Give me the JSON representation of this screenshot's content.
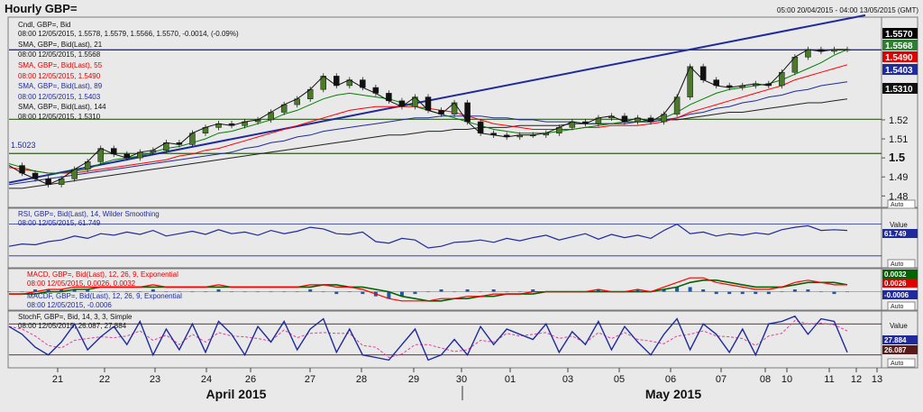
{
  "header": {
    "title": "Hourly GBP=",
    "date_range": "05:00 20/04/2015 - 04:00 13/05/2015 (GMT)"
  },
  "chart_data": {
    "type": "line",
    "x_ticks": [
      "21",
      "22",
      "23",
      "24",
      "26",
      "27",
      "28",
      "29",
      "30",
      "01",
      "03",
      "05",
      "06",
      "07",
      "08",
      "10",
      "11",
      "12",
      "13"
    ],
    "month_labels": [
      "April 2015",
      "May 2015"
    ],
    "colors": {
      "price": "#111111",
      "sma21": "#008000",
      "sma55": "#ff0000",
      "sma89": "#1f2a9c",
      "sma144": "#222222",
      "trendline": "#1f2a9c",
      "rsi": "#1f2a9c",
      "macd": "#ff0000",
      "macd_signal": "#006400",
      "hist": "#1f5aa8",
      "stoch_k": "#1f2a9c",
      "stoch_d": "#e0409a"
    },
    "price_panel": {
      "legend": [
        {
          "name": "Cndl, GBP=, Bid",
          "detail": "08:00 12/05/2015, 1.5578, 1.5579, 1.5566, 1.5570, -0.0014, (-0.09%)"
        },
        {
          "name": "SMA, GBP=, Bid(Last), 21",
          "detail": "08:00 12/05/2015, 1.5568"
        },
        {
          "name": "SMA, GBP=, Bid(Last), 55",
          "detail": "08:00 12/05/2015, 1.5490"
        },
        {
          "name": "SMA, GBP=, Bid(Last), 89",
          "detail": "08:00 12/05/2015, 1.5403"
        },
        {
          "name": "SMA, GBP=, Bid(Last), 144",
          "detail": "08:00 12/05/2015, 1.5310"
        }
      ],
      "y_ticks": [
        "1.52",
        "1.51",
        "1.5",
        "1.49",
        "1.48"
      ],
      "ylim": [
        1.474,
        1.574
      ],
      "value_tags": [
        "1.5570",
        "1.5568",
        "1.5490",
        "1.5403",
        "1.5310"
      ],
      "level_label": "1.5023",
      "horizontal_levels": [
        1.5568,
        1.5203,
        1.5023
      ],
      "auto": "Auto",
      "close_series": [
        1.496,
        1.492,
        1.489,
        1.486,
        1.489,
        1.494,
        1.498,
        1.505,
        1.502,
        1.5,
        1.503,
        1.504,
        1.508,
        1.507,
        1.513,
        1.516,
        1.518,
        1.517,
        1.519,
        1.52,
        1.524,
        1.528,
        1.531,
        1.536,
        1.543,
        1.538,
        1.541,
        1.537,
        1.534,
        1.53,
        1.527,
        1.532,
        1.525,
        1.523,
        1.529,
        1.519,
        1.513,
        1.512,
        1.511,
        1.512,
        1.512,
        1.513,
        1.516,
        1.519,
        1.518,
        1.521,
        1.522,
        1.519,
        1.521,
        1.519,
        1.523,
        1.532,
        1.548,
        1.541,
        1.538,
        1.537,
        1.538,
        1.539,
        1.538,
        1.545,
        1.553,
        1.557,
        1.556,
        1.557,
        1.557
      ],
      "sma21": [
        1.497,
        1.495,
        1.493,
        1.492,
        1.492,
        1.493,
        1.494,
        1.497,
        1.499,
        1.5,
        1.501,
        1.503,
        1.505,
        1.506,
        1.508,
        1.51,
        1.513,
        1.514,
        1.516,
        1.518,
        1.52,
        1.523,
        1.525,
        1.528,
        1.531,
        1.533,
        1.534,
        1.533,
        1.532,
        1.531,
        1.529,
        1.527,
        1.525,
        1.523,
        1.521,
        1.519,
        1.517,
        1.515,
        1.514,
        1.513,
        1.513,
        1.513,
        1.514,
        1.515,
        1.516,
        1.517,
        1.518,
        1.519,
        1.519,
        1.52,
        1.521,
        1.524,
        1.528,
        1.531,
        1.534,
        1.536,
        1.537,
        1.538,
        1.539,
        1.541,
        1.544,
        1.547,
        1.55,
        1.554,
        1.557
      ],
      "sma55": [
        1.495,
        1.494,
        1.493,
        1.492,
        1.492,
        1.492,
        1.493,
        1.494,
        1.495,
        1.496,
        1.497,
        1.498,
        1.499,
        1.501,
        1.502,
        1.504,
        1.505,
        1.507,
        1.509,
        1.511,
        1.513,
        1.515,
        1.517,
        1.519,
        1.521,
        1.523,
        1.525,
        1.526,
        1.527,
        1.527,
        1.527,
        1.527,
        1.526,
        1.525,
        1.524,
        1.522,
        1.52,
        1.518,
        1.517,
        1.516,
        1.515,
        1.515,
        1.515,
        1.515,
        1.516,
        1.516,
        1.517,
        1.517,
        1.517,
        1.518,
        1.519,
        1.521,
        1.524,
        1.526,
        1.528,
        1.53,
        1.532,
        1.534,
        1.536,
        1.538,
        1.541,
        1.543,
        1.545,
        1.547,
        1.549
      ],
      "sma89": [
        1.486,
        1.487,
        1.488,
        1.489,
        1.49,
        1.491,
        1.492,
        1.493,
        1.494,
        1.495,
        1.496,
        1.497,
        1.498,
        1.499,
        1.5,
        1.501,
        1.502,
        1.503,
        1.505,
        1.506,
        1.508,
        1.509,
        1.511,
        1.512,
        1.514,
        1.515,
        1.516,
        1.517,
        1.518,
        1.519,
        1.52,
        1.521,
        1.521,
        1.522,
        1.522,
        1.522,
        1.522,
        1.521,
        1.521,
        1.52,
        1.52,
        1.519,
        1.519,
        1.519,
        1.518,
        1.518,
        1.518,
        1.518,
        1.519,
        1.519,
        1.52,
        1.521,
        1.523,
        1.524,
        1.526,
        1.527,
        1.529,
        1.53,
        1.532,
        1.533,
        1.535,
        1.536,
        1.538,
        1.539,
        1.54
      ],
      "sma144": [
        1.484,
        1.484,
        1.485,
        1.486,
        1.487,
        1.488,
        1.489,
        1.49,
        1.491,
        1.492,
        1.493,
        1.494,
        1.495,
        1.496,
        1.497,
        1.498,
        1.499,
        1.5,
        1.501,
        1.502,
        1.503,
        1.504,
        1.505,
        1.506,
        1.507,
        1.508,
        1.509,
        1.51,
        1.511,
        1.512,
        1.512,
        1.513,
        1.514,
        1.514,
        1.515,
        1.515,
        1.516,
        1.516,
        1.516,
        1.517,
        1.517,
        1.517,
        1.517,
        1.518,
        1.518,
        1.518,
        1.518,
        1.519,
        1.519,
        1.519,
        1.52,
        1.52,
        1.521,
        1.522,
        1.523,
        1.524,
        1.524,
        1.525,
        1.526,
        1.527,
        1.528,
        1.529,
        1.529,
        1.53,
        1.531
      ],
      "trendline": [
        1.487,
        1.575
      ]
    },
    "rsi_panel": {
      "legend": [
        "RSI, GBP=, Bid(Last), 14, Wilder Smoothing",
        "08:00 12/05/2015, 61.749"
      ],
      "value_header": "Value",
      "value_tag": "61.749",
      "ylim": [
        15,
        90
      ],
      "levels": [
        70,
        30
      ],
      "auto": "Auto",
      "series": [
        42,
        45,
        44,
        48,
        50,
        55,
        52,
        58,
        56,
        60,
        57,
        62,
        55,
        58,
        61,
        57,
        63,
        58,
        60,
        56,
        62,
        58,
        61,
        66,
        64,
        58,
        57,
        60,
        48,
        46,
        52,
        50,
        40,
        42,
        47,
        48,
        50,
        47,
        52,
        49,
        53,
        56,
        50,
        54,
        58,
        51,
        57,
        53,
        56,
        52,
        62,
        70,
        58,
        60,
        55,
        58,
        56,
        59,
        57,
        63,
        66,
        68,
        62,
        63,
        62
      ]
    },
    "macd_panel": {
      "legend": [
        "MACD, GBP=, Bid(Last), 12, 26, 9, Exponential",
        "08:00 12/05/2015, 0.0026, 0.0032",
        "MACDF, GBP=, Bid(Last), 12, 26, 9, Exponential",
        "08:00 12/05/2015, -0.0006"
      ],
      "value_tags": [
        "0.0032",
        "0.0026",
        "-0.0006"
      ],
      "ylim": [
        -0.008,
        0.01
      ],
      "auto": "Auto",
      "macd": [
        -0.001,
        -0.001,
        0.0,
        0.001,
        0.001,
        0.002,
        0.002,
        0.002,
        0.002,
        0.002,
        0.002,
        0.003,
        0.002,
        0.002,
        0.002,
        0.002,
        0.003,
        0.002,
        0.002,
        0.002,
        0.002,
        0.002,
        0.002,
        0.003,
        0.003,
        0.002,
        0.002,
        0.001,
        -0.001,
        -0.003,
        -0.004,
        -0.004,
        -0.004,
        -0.003,
        -0.003,
        -0.002,
        -0.002,
        -0.001,
        -0.001,
        -0.001,
        0.0,
        0.0,
        0.0,
        0.0,
        0.0,
        0.001,
        0.0,
        0.0,
        0.001,
        0.0,
        0.002,
        0.004,
        0.006,
        0.006,
        0.004,
        0.003,
        0.002,
        0.001,
        0.001,
        0.002,
        0.004,
        0.005,
        0.004,
        0.003,
        0.003
      ],
      "signal": [
        -0.001,
        -0.001,
        -0.001,
        0.0,
        0.0,
        0.001,
        0.001,
        0.002,
        0.002,
        0.002,
        0.002,
        0.002,
        0.002,
        0.002,
        0.002,
        0.002,
        0.002,
        0.002,
        0.002,
        0.002,
        0.002,
        0.002,
        0.002,
        0.002,
        0.003,
        0.003,
        0.002,
        0.002,
        0.001,
        0.0,
        -0.002,
        -0.003,
        -0.004,
        -0.004,
        -0.003,
        -0.003,
        -0.002,
        -0.002,
        -0.001,
        -0.001,
        -0.001,
        0.0,
        0.0,
        0.0,
        0.0,
        0.0,
        0.0,
        0.0,
        0.0,
        0.0,
        0.001,
        0.002,
        0.004,
        0.005,
        0.005,
        0.004,
        0.003,
        0.002,
        0.002,
        0.002,
        0.003,
        0.004,
        0.004,
        0.004,
        0.003
      ]
    },
    "stoch_panel": {
      "legend": [
        "StochF, GBP=, Bid, 14, 3, 3, Simple",
        "08:00 12/05/2015, 26.087, 27.884"
      ],
      "value_header": "Value",
      "value_tags": [
        "27.884",
        "26.087"
      ],
      "ylim": [
        -5,
        105
      ],
      "levels": [
        80,
        20
      ],
      "auto": "Auto",
      "k": [
        75,
        60,
        35,
        20,
        45,
        80,
        30,
        55,
        75,
        40,
        85,
        20,
        70,
        30,
        80,
        25,
        85,
        60,
        20,
        75,
        45,
        85,
        30,
        70,
        90,
        25,
        70,
        20,
        15,
        10,
        40,
        70,
        10,
        20,
        50,
        20,
        75,
        40,
        70,
        60,
        50,
        80,
        25,
        65,
        40,
        85,
        30,
        75,
        45,
        20,
        60,
        90,
        30,
        80,
        60,
        25,
        70,
        20,
        80,
        85,
        95,
        60,
        90,
        85,
        25
      ]
    }
  }
}
